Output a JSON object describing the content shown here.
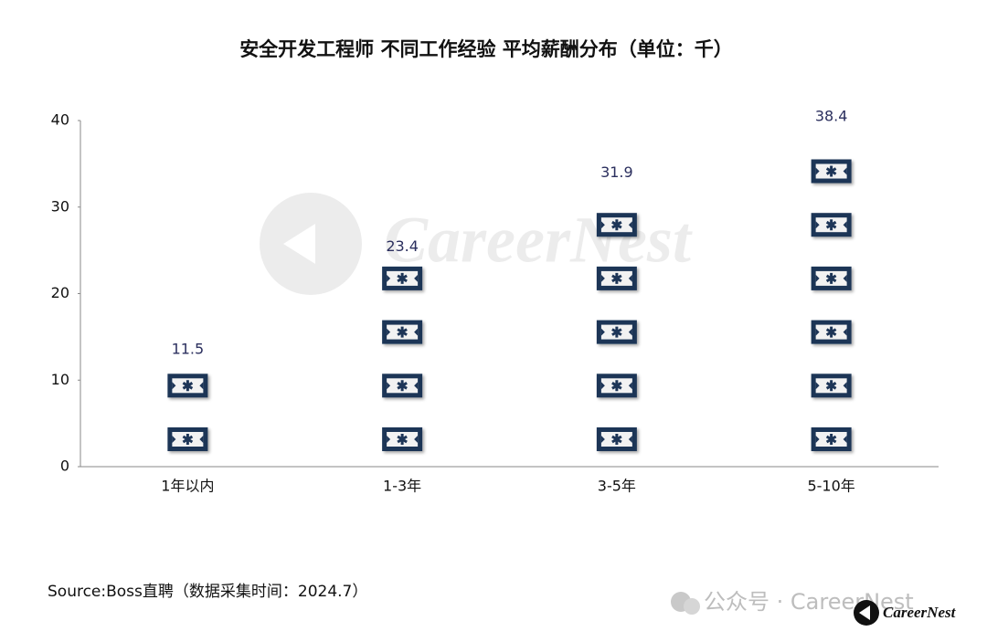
{
  "chart_data": {
    "type": "pictogram",
    "title": "安全开发工程师 不同工作经验 平均薪酬分布（单位：千）",
    "categories": [
      "1年以内",
      "1-3年",
      "3-5年",
      "5-10年"
    ],
    "values": [
      11.5,
      23.4,
      31.9,
      38.4
    ],
    "color": "#1d3557",
    "label_color": "#2b2f5e",
    "ylim": [
      0,
      40
    ],
    "yticks": [
      0,
      10,
      20,
      30,
      40
    ],
    "grid": false,
    "source": "Source:Boss直聘（数据采集时间：2024.7）"
  },
  "watermarks": {
    "center": "CareerNest",
    "account": "公众号 · CareerNest",
    "logo": "CareerNest"
  }
}
